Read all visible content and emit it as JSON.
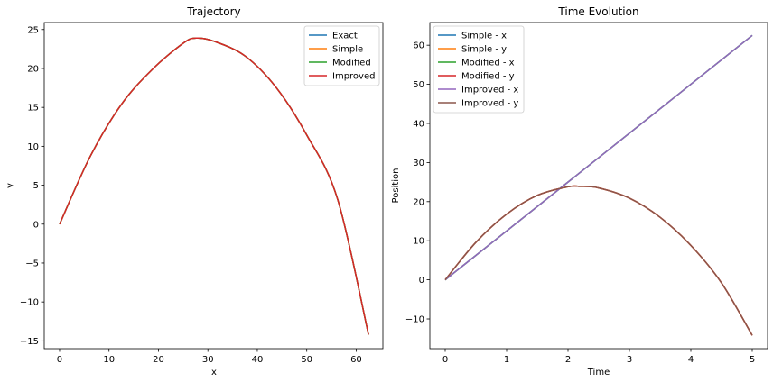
{
  "chart_data": [
    {
      "type": "line",
      "title": "Trajectory",
      "xlabel": "x",
      "ylabel": "y",
      "xlim": [
        -3.1,
        65.4
      ],
      "ylim": [
        -16.0,
        25.9
      ],
      "xticks": [
        0,
        10,
        20,
        30,
        40,
        50,
        60
      ],
      "yticks": [
        -15,
        -10,
        -5,
        0,
        5,
        10,
        15,
        20,
        25
      ],
      "xtick_labels": [
        "0",
        "10",
        "20",
        "30",
        "40",
        "50",
        "60"
      ],
      "ytick_labels": [
        "−15",
        "−10",
        "−5",
        "0",
        "5",
        "10",
        "15",
        "20",
        "25"
      ],
      "legend": {
        "position": "top-right",
        "entries": [
          "Exact",
          "Simple",
          "Modified",
          "Improved"
        ]
      },
      "series": [
        {
          "name": "Exact",
          "color": "#1f77b4",
          "x": [
            0,
            6.25,
            12.5,
            18.75,
            25,
            27.6,
            31.25,
            37.5,
            43.75,
            50,
            56.25,
            62.5
          ],
          "y": [
            0,
            8.76,
            15.38,
            19.87,
            23.24,
            23.9,
            23.49,
            21.61,
            17.6,
            11.45,
            3.18,
            -14.2
          ]
        },
        {
          "name": "Simple",
          "color": "#ff7f0e",
          "x": [
            0,
            6.25,
            12.5,
            18.75,
            25,
            27.6,
            31.25,
            37.5,
            43.75,
            50,
            56.25,
            62.5
          ],
          "y": [
            0,
            8.76,
            15.38,
            19.87,
            23.24,
            23.9,
            23.49,
            21.61,
            17.6,
            11.45,
            3.18,
            -14.2
          ]
        },
        {
          "name": "Modified",
          "color": "#2ca02c",
          "x": [
            0,
            6.25,
            12.5,
            18.75,
            25,
            27.6,
            31.25,
            37.5,
            43.75,
            50,
            56.25,
            62.5
          ],
          "y": [
            0,
            8.76,
            15.38,
            19.87,
            23.24,
            23.9,
            23.49,
            21.61,
            17.6,
            11.45,
            3.18,
            -14.2
          ]
        },
        {
          "name": "Improved",
          "color": "#d62728",
          "x": [
            0,
            6.25,
            12.5,
            18.75,
            25,
            27.6,
            31.25,
            37.5,
            43.75,
            50,
            56.25,
            62.5
          ],
          "y": [
            0,
            8.76,
            15.38,
            19.87,
            23.24,
            23.9,
            23.49,
            21.61,
            17.6,
            11.45,
            3.18,
            -14.2
          ]
        }
      ]
    },
    {
      "type": "line",
      "title": "Time Evolution",
      "xlabel": "Time",
      "ylabel": "Position",
      "xlim": [
        -0.25,
        5.25
      ],
      "ylim": [
        -17.6,
        65.8
      ],
      "xticks": [
        0,
        1,
        2,
        3,
        4,
        5
      ],
      "yticks": [
        -10,
        0,
        10,
        20,
        30,
        40,
        50,
        60
      ],
      "xtick_labels": [
        "0",
        "1",
        "2",
        "3",
        "4",
        "5"
      ],
      "ytick_labels": [
        "−10",
        "0",
        "10",
        "20",
        "30",
        "40",
        "50",
        "60"
      ],
      "legend": {
        "position": "top-left",
        "entries": [
          "Simple - x",
          "Simple - y",
          "Modified - x",
          "Modified - y",
          "Improved - x",
          "Improved - y"
        ]
      },
      "series": [
        {
          "name": "Simple - x",
          "color": "#1f77b4",
          "x": [
            0,
            5
          ],
          "y": [
            0,
            62.5
          ]
        },
        {
          "name": "Simple - y",
          "color": "#ff7f0e",
          "x": [
            0,
            0.5,
            1,
            1.5,
            2,
            2.2,
            2.5,
            3,
            3.5,
            4,
            4.5,
            5
          ],
          "y": [
            0,
            9.6,
            16.8,
            21.6,
            23.8,
            23.9,
            23.5,
            20.9,
            16.0,
            8.8,
            -0.8,
            -14.2
          ]
        },
        {
          "name": "Modified - x",
          "color": "#2ca02c",
          "x": [
            0,
            5
          ],
          "y": [
            0,
            62.5
          ]
        },
        {
          "name": "Modified - y",
          "color": "#d62728",
          "x": [
            0,
            0.5,
            1,
            1.5,
            2,
            2.2,
            2.5,
            3,
            3.5,
            4,
            4.5,
            5
          ],
          "y": [
            0,
            9.6,
            16.8,
            21.6,
            23.8,
            23.9,
            23.5,
            20.9,
            16.0,
            8.8,
            -0.8,
            -14.2
          ]
        },
        {
          "name": "Improved - x",
          "color": "#9467bd",
          "x": [
            0,
            5
          ],
          "y": [
            0,
            62.5
          ]
        },
        {
          "name": "Improved - y",
          "color": "#8c564b",
          "x": [
            0,
            0.5,
            1,
            1.5,
            2,
            2.2,
            2.5,
            3,
            3.5,
            4,
            4.5,
            5
          ],
          "y": [
            0,
            9.6,
            16.8,
            21.6,
            23.8,
            23.9,
            23.5,
            20.9,
            16.0,
            8.8,
            -0.8,
            -14.2
          ]
        }
      ]
    }
  ]
}
